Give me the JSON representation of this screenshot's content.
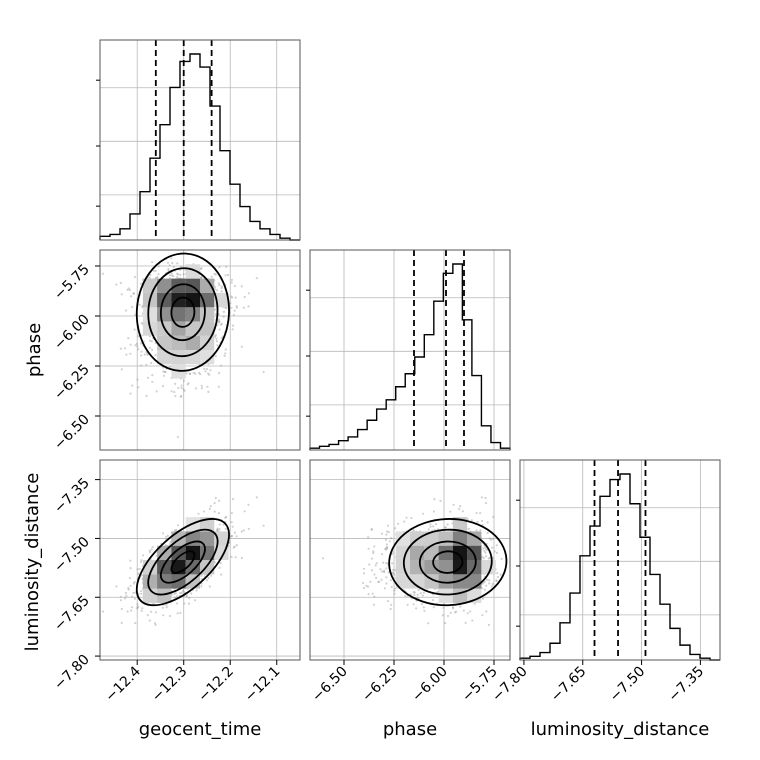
{
  "chart_data": {
    "type": "corner",
    "parameters": [
      "geocent_time",
      "phase",
      "luminosity_distance"
    ],
    "ranges": {
      "geocent_time": [
        -12.48,
        -12.05
      ],
      "phase": [
        -6.67,
        -5.67
      ],
      "luminosity_distance": [
        -7.81,
        -7.3
      ]
    },
    "ticks": {
      "geocent_time": [
        -12.4,
        -12.3,
        -12.2,
        -12.1
      ],
      "phase": [
        -6.5,
        -6.25,
        -6.0,
        -5.75
      ],
      "luminosity_distance": [
        -7.8,
        -7.65,
        -7.5,
        -7.35
      ]
    },
    "tick_labels": {
      "geocent_time": [
        "−12.4",
        "−12.3",
        "−12.2",
        "−12.1"
      ],
      "phase": [
        "−6.50",
        "−6.25",
        "−6.00",
        "−5.75"
      ],
      "luminosity_distance": [
        "−7.80",
        "−7.65",
        "−7.50",
        "−7.35"
      ]
    },
    "quantiles": {
      "geocent_time": [
        -12.36,
        -12.3,
        -12.24
      ],
      "phase": [
        -6.15,
        -5.99,
        -5.9
      ],
      "luminosity_distance": [
        -7.62,
        -7.56,
        -7.49
      ]
    },
    "histograms": {
      "geocent_time": {
        "range": [
          -12.48,
          -12.05
        ],
        "counts": [
          2,
          3,
          6,
          14,
          26,
          44,
          62,
          82,
          96,
          100,
          93,
          72,
          48,
          30,
          18,
          10,
          6,
          3,
          1,
          0
        ]
      },
      "phase": {
        "range": [
          -6.67,
          -5.67
        ],
        "counts": [
          1,
          2,
          3,
          5,
          7,
          11,
          16,
          22,
          27,
          34,
          41,
          50,
          62,
          80,
          95,
          100,
          70,
          40,
          13,
          4,
          1
        ]
      },
      "luminosity_distance": {
        "range": [
          -7.81,
          -7.3
        ],
        "counts": [
          1,
          2,
          4,
          9,
          20,
          36,
          56,
          72,
          88,
          97,
          100,
          84,
          66,
          46,
          30,
          17,
          8,
          3,
          1,
          0
        ]
      }
    },
    "contour_levels": 4,
    "grid": true
  }
}
